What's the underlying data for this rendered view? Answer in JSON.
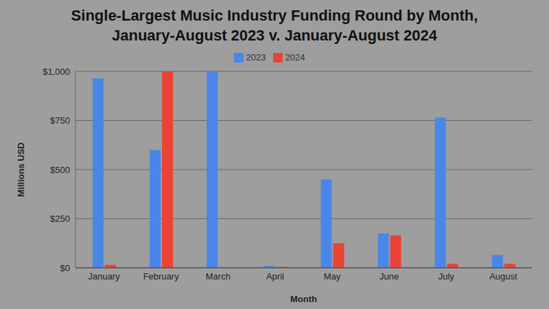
{
  "chart_data": {
    "type": "bar",
    "title": "Single-Largest Music Industry Funding Round by Month, January-August 2023 v. January-August 2024",
    "x_label": "Month",
    "y_label": "Millions USD",
    "categories": [
      "January",
      "February",
      "March",
      "April",
      "May",
      "June",
      "July",
      "August"
    ],
    "series": [
      {
        "name": "2023",
        "color": "#4a86e8",
        "values": [
          965,
          600,
          1000,
          10,
          450,
          175,
          765,
          65
        ]
      },
      {
        "name": "2024",
        "color": "#ea4335",
        "values": [
          15,
          1000,
          null,
          5,
          125,
          165,
          20,
          20
        ]
      }
    ],
    "ylim": [
      0,
      1000
    ],
    "yticks": [
      {
        "value": 0,
        "label": "$0"
      },
      {
        "value": 250,
        "label": "$250"
      },
      {
        "value": 500,
        "label": "$500"
      },
      {
        "value": 750,
        "label": "$750"
      },
      {
        "value": 1000,
        "label": "$1,000"
      }
    ],
    "grid": true,
    "legend": "top"
  }
}
